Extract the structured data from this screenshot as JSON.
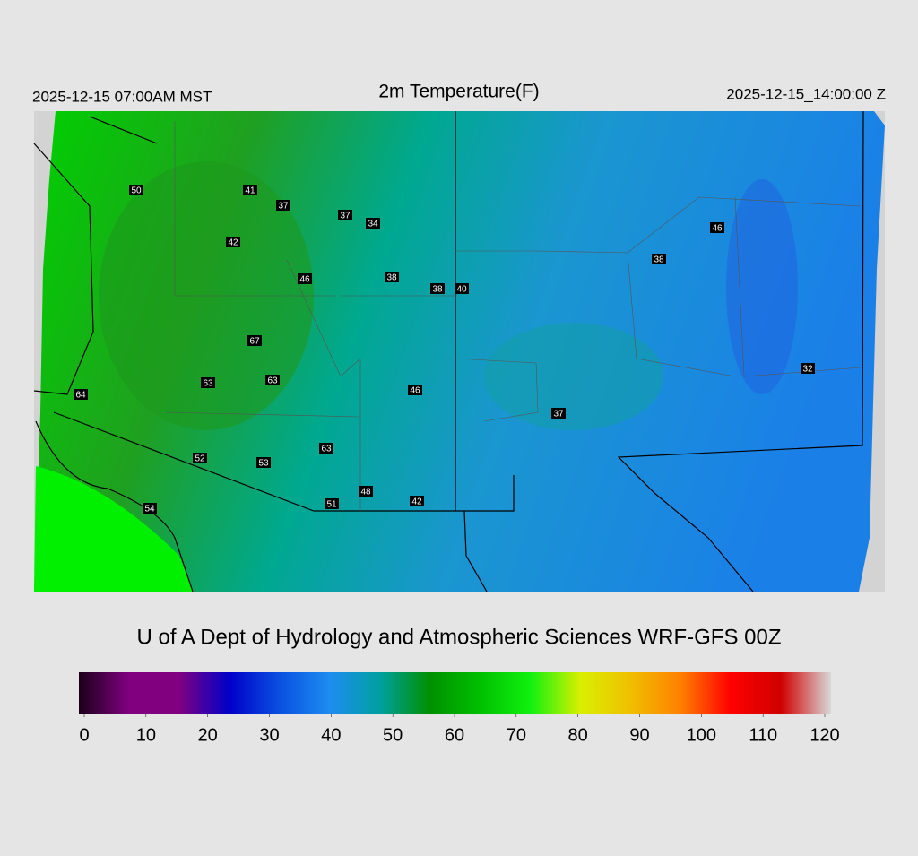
{
  "header": {
    "left": "2025-12-15 07:00AM MST",
    "title": "2m Temperature(F)",
    "right": "2025-12-15_14:00:00 Z"
  },
  "stations": [
    50,
    41,
    37,
    37,
    34,
    42,
    46,
    38,
    38,
    40,
    46,
    38,
    67,
    63,
    63,
    64,
    46,
    32,
    37,
    52,
    53,
    63,
    48,
    51,
    42,
    54
  ],
  "footer": "U of A Dept of Hydrology and Atmospheric Sciences WRF-GFS 00Z",
  "colorbar": {
    "range": [
      0,
      120
    ],
    "ticks": [
      0,
      10,
      20,
      30,
      40,
      50,
      60,
      70,
      80,
      90,
      100,
      110,
      120
    ],
    "colors": [
      "#1a001a",
      "#800080",
      "#800080",
      "#0000c8",
      "#0a50e0",
      "#1e8cf0",
      "#00a0a0",
      "#009000",
      "#00c000",
      "#10f010",
      "#d8f000",
      "#f0c000",
      "#ff8000",
      "#ff0000",
      "#d00000",
      "#d8d8d8"
    ]
  }
}
